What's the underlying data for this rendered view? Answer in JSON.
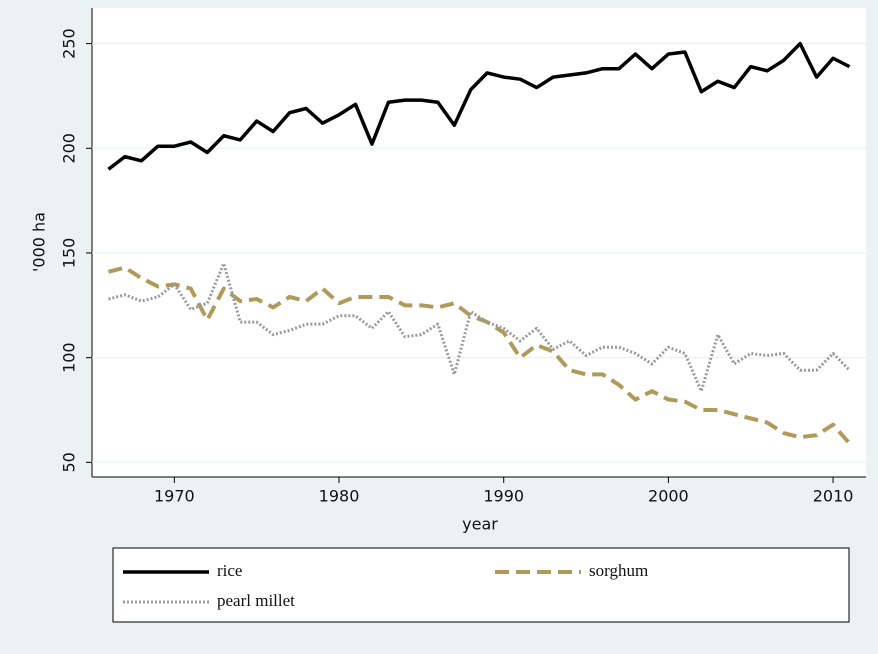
{
  "chart_data": {
    "type": "line",
    "x": [
      1966,
      1967,
      1968,
      1969,
      1970,
      1971,
      1972,
      1973,
      1974,
      1975,
      1976,
      1977,
      1978,
      1979,
      1980,
      1981,
      1982,
      1983,
      1984,
      1985,
      1986,
      1987,
      1988,
      1989,
      1990,
      1991,
      1992,
      1993,
      1994,
      1995,
      1996,
      1997,
      1998,
      1999,
      2000,
      2001,
      2002,
      2003,
      2004,
      2005,
      2006,
      2007,
      2008,
      2009,
      2010,
      2011
    ],
    "series": [
      {
        "name": "rice",
        "color": "#000000",
        "dash": "solid",
        "values": [
          190,
          196,
          194,
          201,
          201,
          203,
          198,
          206,
          204,
          213,
          208,
          217,
          219,
          212,
          216,
          221,
          202,
          222,
          223,
          223,
          222,
          211,
          228,
          236,
          234,
          233,
          229,
          234,
          235,
          236,
          238,
          238,
          245,
          238,
          245,
          246,
          227,
          232,
          229,
          239,
          237,
          242,
          250,
          234,
          243,
          239
        ]
      },
      {
        "name": "sorghum",
        "color": "#b09a5b",
        "dash": "dashed",
        "values": [
          141,
          143,
          138,
          134,
          135,
          133,
          118,
          133,
          127,
          128,
          124,
          129,
          127,
          133,
          126,
          129,
          129,
          129,
          125,
          125,
          124,
          126,
          120,
          117,
          112,
          100,
          106,
          103,
          94,
          92,
          92,
          87,
          80,
          84,
          80,
          79,
          75,
          75,
          73,
          71,
          69,
          64,
          62,
          63,
          68,
          59
        ]
      },
      {
        "name": "pearl millet",
        "color": "#9a9a9a",
        "dash": "dotted",
        "values": [
          128,
          130,
          127,
          129,
          135,
          123,
          126,
          145,
          117,
          117,
          111,
          113,
          116,
          116,
          120,
          120,
          114,
          122,
          110,
          111,
          116,
          92,
          122,
          117,
          114,
          108,
          114,
          104,
          108,
          101,
          105,
          105,
          102,
          97,
          105,
          102,
          84,
          111,
          97,
          102,
          101,
          102,
          94,
          94,
          102,
          94
        ]
      }
    ],
    "xlabel": "year",
    "ylabel": "'000 ha",
    "xlim": [
      1965,
      2012
    ],
    "ylim": [
      43,
      267
    ],
    "xticks": [
      1970,
      1980,
      1990,
      2000,
      2010
    ],
    "yticks": [
      50,
      100,
      150,
      200,
      250
    ],
    "grid": true,
    "legend": "bottom"
  }
}
